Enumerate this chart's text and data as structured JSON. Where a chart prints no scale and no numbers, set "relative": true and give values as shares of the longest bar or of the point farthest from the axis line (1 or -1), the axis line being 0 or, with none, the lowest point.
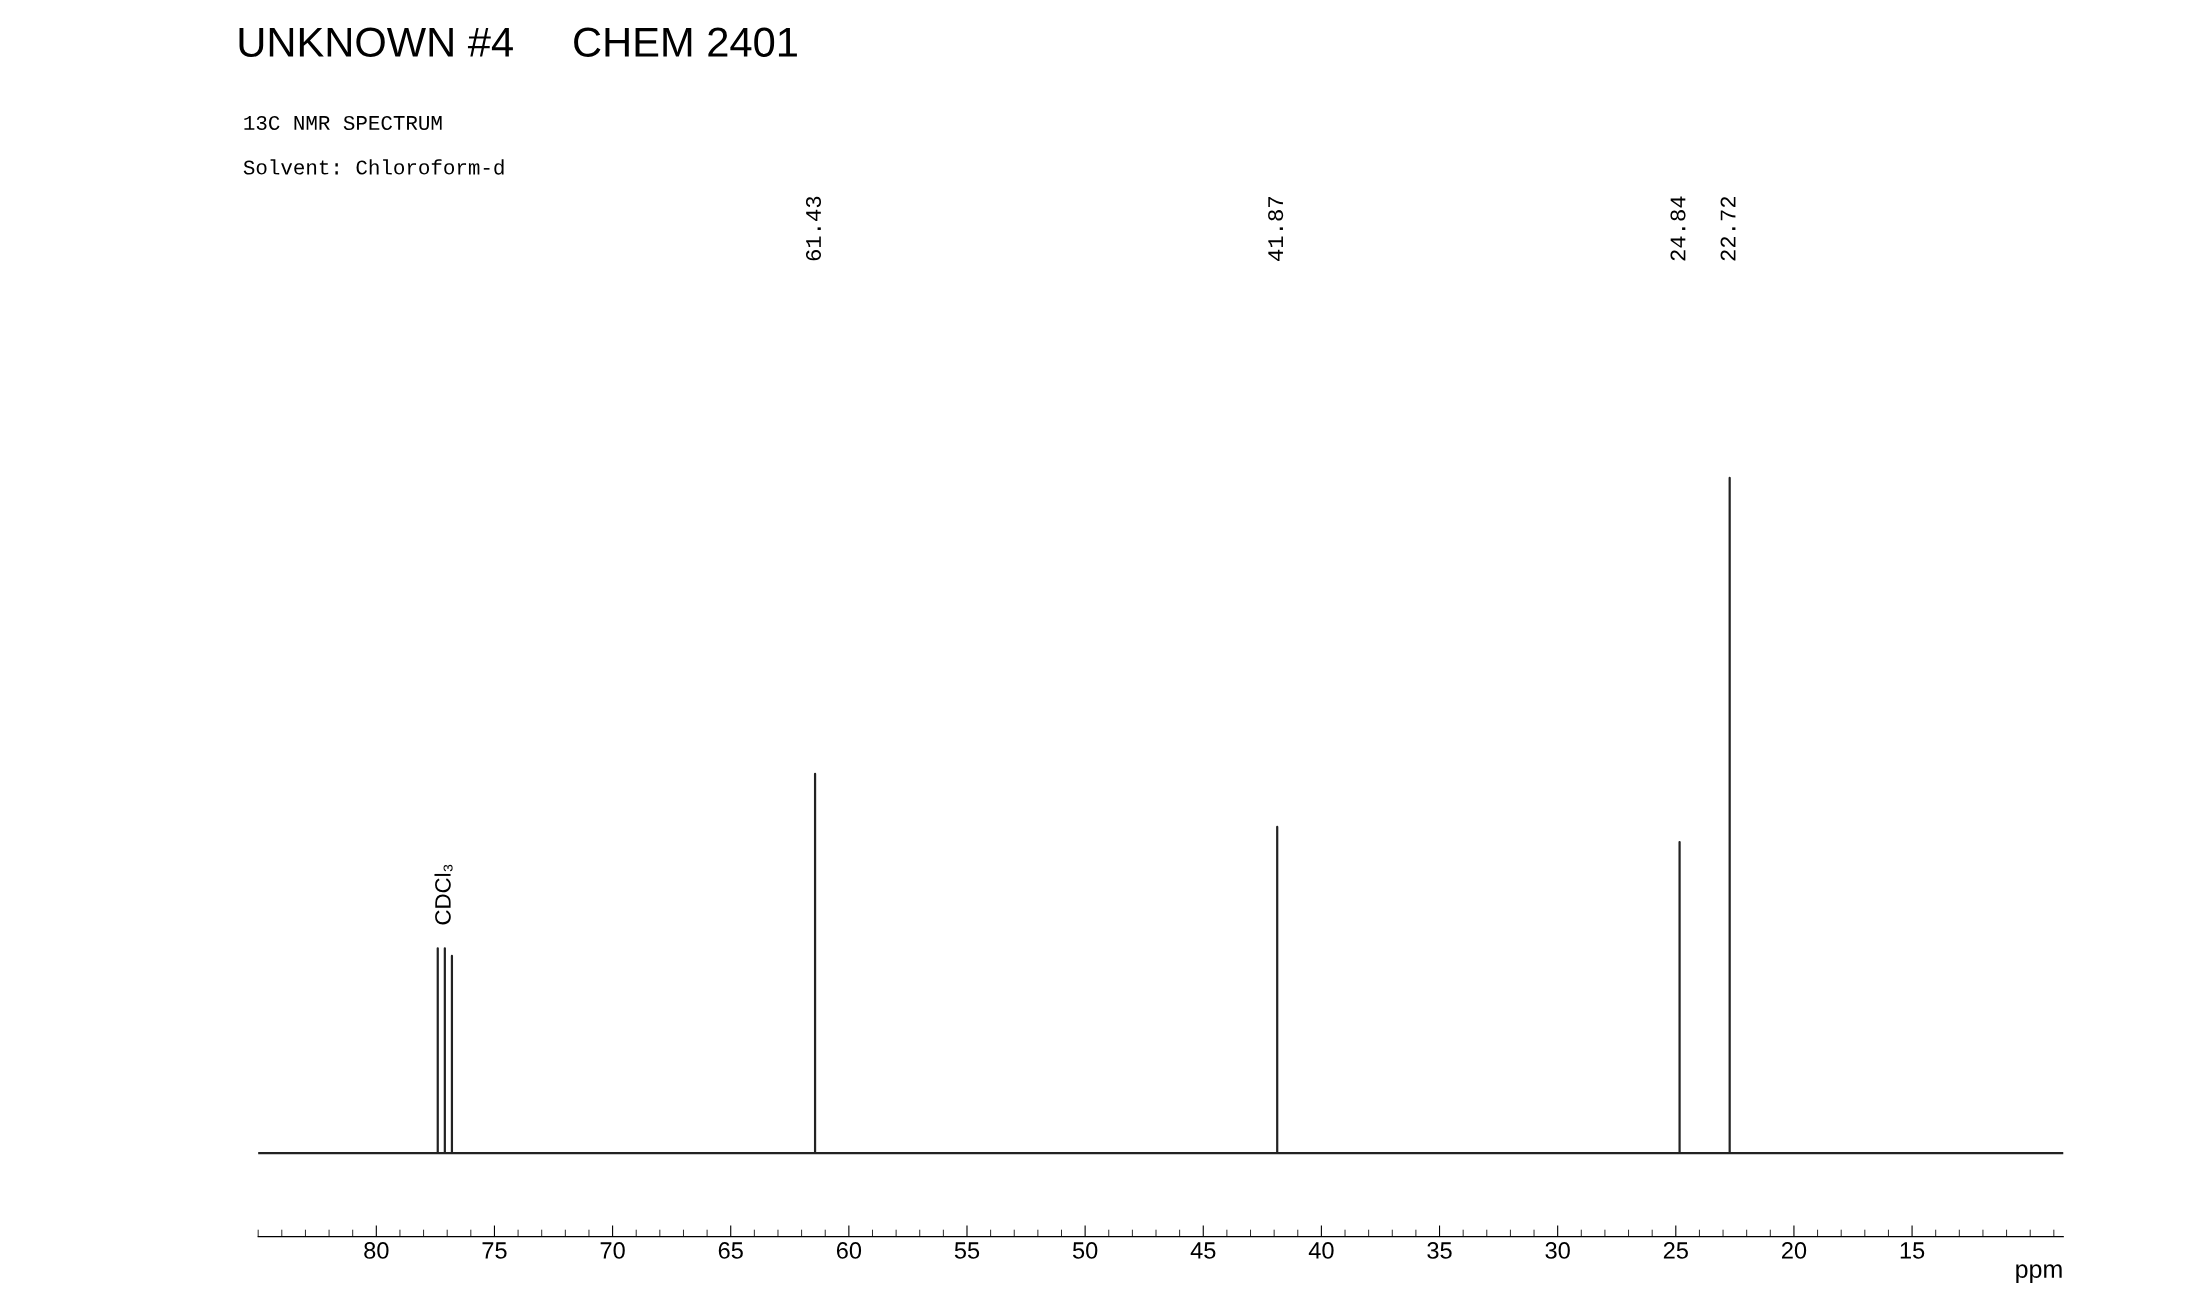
{
  "chart_data": {
    "type": "line",
    "title": "UNKNOWN #4     CHEM 2401",
    "subtitle": "13C NMR SPECTRUM",
    "xlabel": "ppm",
    "relative": true,
    "color": "#222222",
    "x": [
      85,
      77.4,
      77.4,
      77.4,
      77.1,
      77.1,
      77.1,
      76.8,
      76.8,
      76.8,
      61.43,
      61.43,
      61.43,
      41.87,
      41.87,
      41.87,
      24.84,
      24.84,
      24.84,
      22.72,
      22.72,
      22.72,
      8.6
    ],
    "values": [
      0.11,
      0.11,
      0.38,
      0.11,
      0.11,
      0.38,
      0.11,
      0.11,
      0.37,
      0.11,
      0.11,
      0.61,
      0.11,
      0.11,
      0.54,
      0.11,
      0.11,
      0.52,
      0.11,
      0.11,
      1,
      0.11,
      0.11
    ],
    "xlim": [
      85,
      8.6
    ],
    "xticks": [
      80,
      75,
      70,
      65,
      60,
      55,
      50,
      45,
      40,
      35,
      30,
      25,
      20,
      15
    ],
    "annotations": [
      "Solvent: Chloroform-d",
      "CDCl₃",
      "61.43",
      "41.87",
      "24.84",
      "22.72"
    ],
    "grid": false,
    "legend": false
  }
}
